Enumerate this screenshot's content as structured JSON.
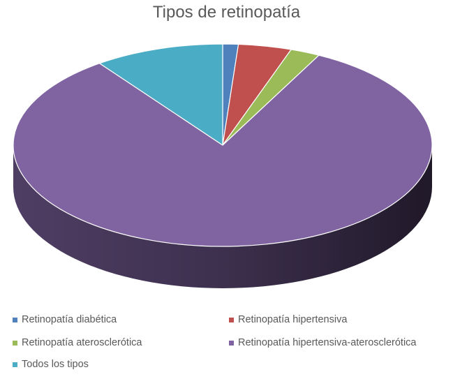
{
  "chart_data": {
    "type": "pie",
    "style": "3d",
    "title": "Tipos de retinopatía",
    "legend_position": "bottom",
    "slices": [
      {
        "label": "Retinopatía diabética",
        "value": 1.2,
        "color": "#4f81bd"
      },
      {
        "label": "Retinopatía hipertensiva",
        "value": 4.1,
        "color": "#c0504d"
      },
      {
        "label": "Retinopatía aterosclerótica",
        "value": 2.3,
        "color": "#9bbb59"
      },
      {
        "label": "Retinopatía hipertensiva-aterosclerótica",
        "value": 82.4,
        "color": "#8064a2"
      },
      {
        "label": "Todos los tipos",
        "value": 10.0,
        "color": "#4bacc6"
      }
    ]
  }
}
